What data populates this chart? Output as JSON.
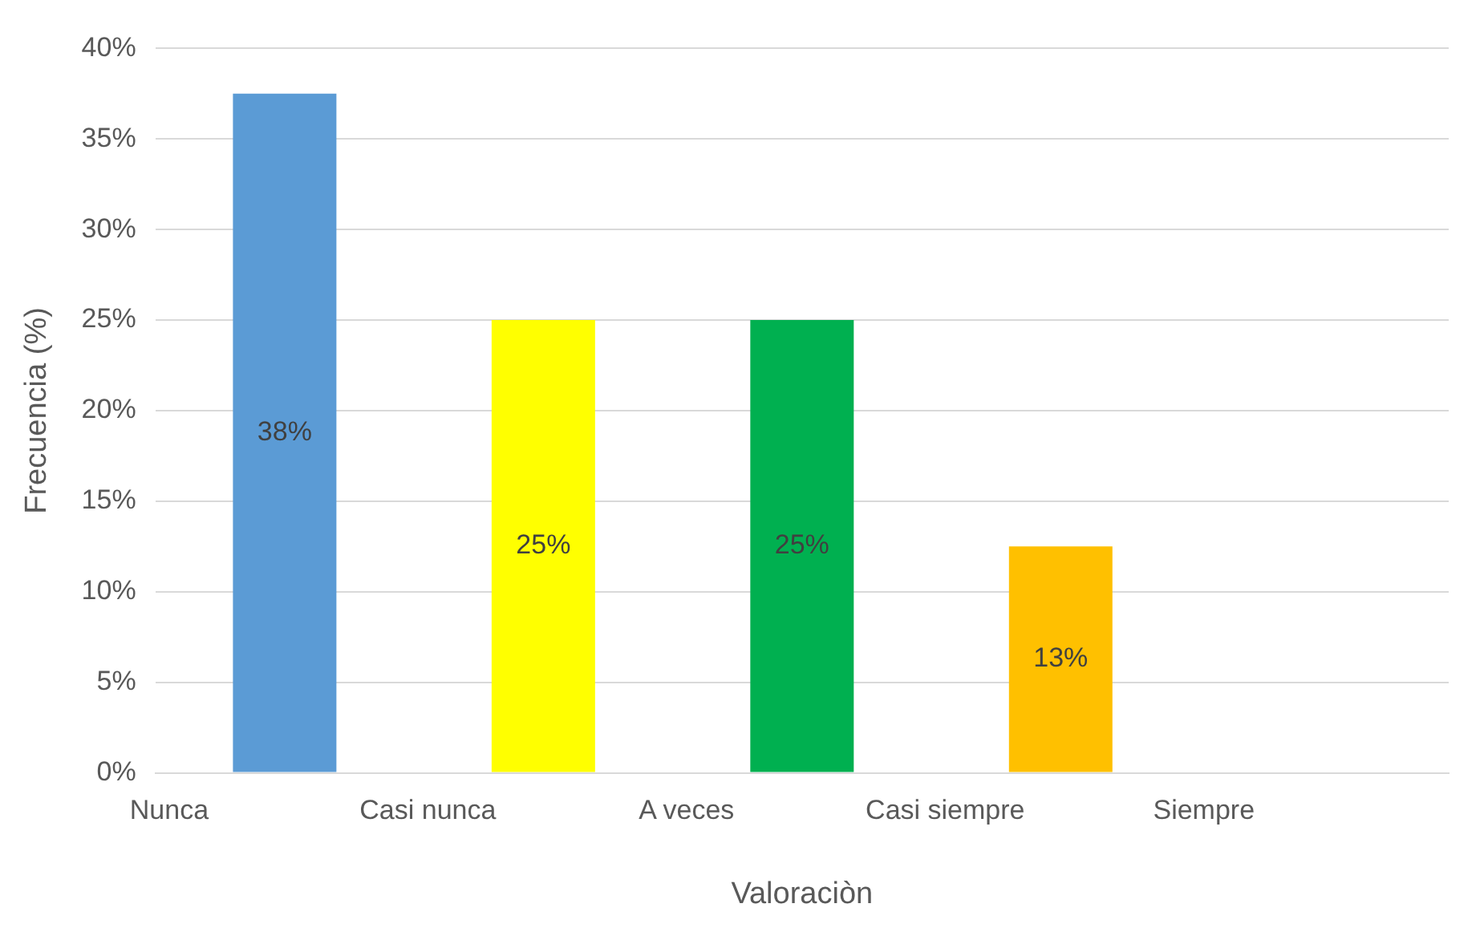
{
  "chart_data": {
    "type": "bar",
    "xlabel": "Valoraciòn",
    "ylabel": "Frecuencia (%)",
    "categories": [
      "Nunca",
      "Casi nunca",
      "A veces",
      "Casi siempre",
      "Siempre"
    ],
    "values": [
      37.5,
      25,
      25,
      12.5,
      null
    ],
    "colors": [
      "#5b9bd5",
      "#ffff00",
      "#00b050",
      "#ffc000",
      "#a5a5a5"
    ],
    "value_labels": [
      "38%",
      "25%",
      "25%",
      "13%",
      null
    ],
    "ylim": [
      0,
      40
    ],
    "yticks": [
      {
        "value": 0,
        "label": "0%"
      },
      {
        "value": 5,
        "label": "5%"
      },
      {
        "value": 10,
        "label": "10%"
      },
      {
        "value": 15,
        "label": "15%"
      },
      {
        "value": 20,
        "label": "20%"
      },
      {
        "value": 25,
        "label": "25%"
      },
      {
        "value": 30,
        "label": "30%"
      },
      {
        "value": 35,
        "label": "35%"
      },
      {
        "value": 40,
        "label": "40%"
      }
    ],
    "grid": "y",
    "legend": false
  }
}
